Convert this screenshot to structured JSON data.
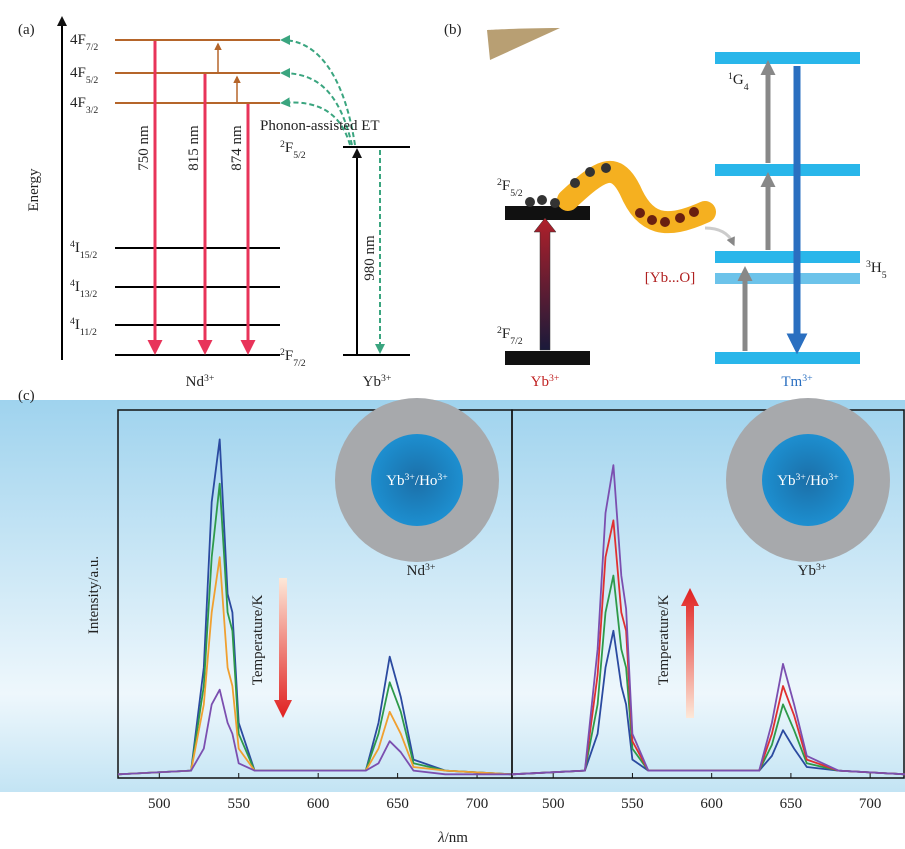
{
  "panel_a": {
    "label": "(a)",
    "axis_label": "Energy",
    "nd_levels": [
      [
        {
          "t": "4F"
        },
        {
          "sub": "7/2"
        }
      ],
      [
        {
          "t": "4F"
        },
        {
          "sub": "5/2"
        }
      ],
      [
        {
          "t": "4F"
        },
        {
          "sub": "3/2"
        }
      ],
      [
        {
          "sup": "4"
        },
        {
          "t": "I"
        },
        {
          "sub": "15/2"
        }
      ],
      [
        {
          "sup": "4"
        },
        {
          "t": "I"
        },
        {
          "sub": "13/2"
        }
      ],
      [
        {
          "sup": "4"
        },
        {
          "t": "I"
        },
        {
          "sub": "11/2"
        }
      ]
    ],
    "yb_levels": [
      [
        {
          "sup": "2"
        },
        {
          "t": "F"
        },
        {
          "sub": "5/2"
        }
      ],
      [
        {
          "sup": "2"
        },
        {
          "t": "F"
        },
        {
          "sub": "7/2"
        }
      ]
    ],
    "emissions": [
      "750 nm",
      "815 nm",
      "874 nm"
    ],
    "absorption": "980 nm",
    "transfer": "Phonon-assisted ET",
    "ions": [
      [
        {
          "t": "Nd"
        },
        {
          "sup": "3+"
        }
      ],
      [
        {
          "t": "Yb"
        },
        {
          "sup": "3+"
        }
      ]
    ]
  },
  "panel_b": {
    "label": "(b)",
    "yb_levels": [
      [
        {
          "sup": "2"
        },
        {
          "t": "F"
        },
        {
          "sub": "5/2"
        }
      ],
      [
        {
          "sup": "2"
        },
        {
          "t": "F"
        },
        {
          "sub": "7/2"
        }
      ]
    ],
    "tm_levels": [
      [
        {
          "sup": "1"
        },
        {
          "t": "G"
        },
        {
          "sub": "4"
        }
      ],
      [
        {
          "sup": "3"
        },
        {
          "t": "H"
        },
        {
          "sub": "5"
        }
      ]
    ],
    "complex": "[Yb...O]",
    "ions": [
      [
        {
          "t": "Yb"
        },
        {
          "sup": "3+"
        }
      ],
      [
        {
          "t": "Tm"
        },
        {
          "sup": "3+"
        }
      ]
    ]
  },
  "panel_c": {
    "label": "(c)",
    "y_label": "Intensity/a.u.",
    "x_label": [
      {
        "i": "λ"
      },
      {
        "t": "/nm"
      }
    ],
    "temperature": "Temperature/K",
    "xlim": [
      474,
      722
    ],
    "ylim": [
      0,
      1
    ],
    "xticks": [
      500,
      550,
      600,
      650,
      700
    ],
    "x": [
      474,
      520,
      528,
      533,
      538,
      543,
      546,
      550,
      560,
      630,
      638,
      645,
      652,
      660,
      680,
      722
    ],
    "plots": [
      {
        "core": [
          {
            "t": "Yb"
          },
          {
            "sup": "3+"
          },
          {
            "t": "/Ho"
          },
          {
            "sup": "3+"
          }
        ],
        "shell": [
          {
            "t": "Nd"
          },
          {
            "sup": "3+"
          }
        ],
        "series": [
          {
            "color": "#2b4aa0",
            "values": [
              0.01,
              0.02,
              0.3,
              0.75,
              0.92,
              0.5,
              0.45,
              0.15,
              0.02,
              0.02,
              0.15,
              0.33,
              0.22,
              0.05,
              0.02,
              0.01
            ]
          },
          {
            "color": "#2e9a4a",
            "values": [
              0.01,
              0.02,
              0.25,
              0.6,
              0.8,
              0.45,
              0.4,
              0.12,
              0.02,
              0.02,
              0.12,
              0.26,
              0.18,
              0.04,
              0.02,
              0.01
            ]
          },
          {
            "color": "#f0a030",
            "values": [
              0.01,
              0.02,
              0.2,
              0.45,
              0.6,
              0.3,
              0.25,
              0.08,
              0.02,
              0.02,
              0.08,
              0.18,
              0.12,
              0.03,
              0.02,
              0.01
            ]
          },
          {
            "color": "#7b4fb0",
            "values": [
              0.01,
              0.02,
              0.08,
              0.2,
              0.24,
              0.15,
              0.12,
              0.04,
              0.02,
              0.02,
              0.04,
              0.1,
              0.07,
              0.02,
              0.01,
              0.01
            ]
          }
        ]
      },
      {
        "core": [
          {
            "t": "Yb"
          },
          {
            "sup": "3+"
          },
          {
            "t": "/Ho"
          },
          {
            "sup": "3+"
          }
        ],
        "shell": [
          {
            "t": "Yb"
          },
          {
            "sup": "3+"
          }
        ],
        "series": [
          {
            "color": "#2b4aa0",
            "values": [
              0.01,
              0.02,
              0.12,
              0.3,
              0.4,
              0.25,
              0.2,
              0.05,
              0.02,
              0.02,
              0.06,
              0.13,
              0.08,
              0.03,
              0.02,
              0.01
            ]
          },
          {
            "color": "#2e9a4a",
            "values": [
              0.01,
              0.02,
              0.2,
              0.45,
              0.55,
              0.35,
              0.3,
              0.08,
              0.02,
              0.02,
              0.09,
              0.2,
              0.13,
              0.04,
              0.02,
              0.01
            ]
          },
          {
            "color": "#e03030",
            "values": [
              0.01,
              0.02,
              0.28,
              0.6,
              0.7,
              0.45,
              0.4,
              0.1,
              0.02,
              0.02,
              0.12,
              0.25,
              0.17,
              0.05,
              0.02,
              0.01
            ]
          },
          {
            "color": "#7b4fb0",
            "values": [
              0.01,
              0.02,
              0.35,
              0.72,
              0.85,
              0.55,
              0.46,
              0.12,
              0.02,
              0.02,
              0.15,
              0.31,
              0.2,
              0.06,
              0.02,
              0.01
            ]
          }
        ]
      }
    ]
  }
}
